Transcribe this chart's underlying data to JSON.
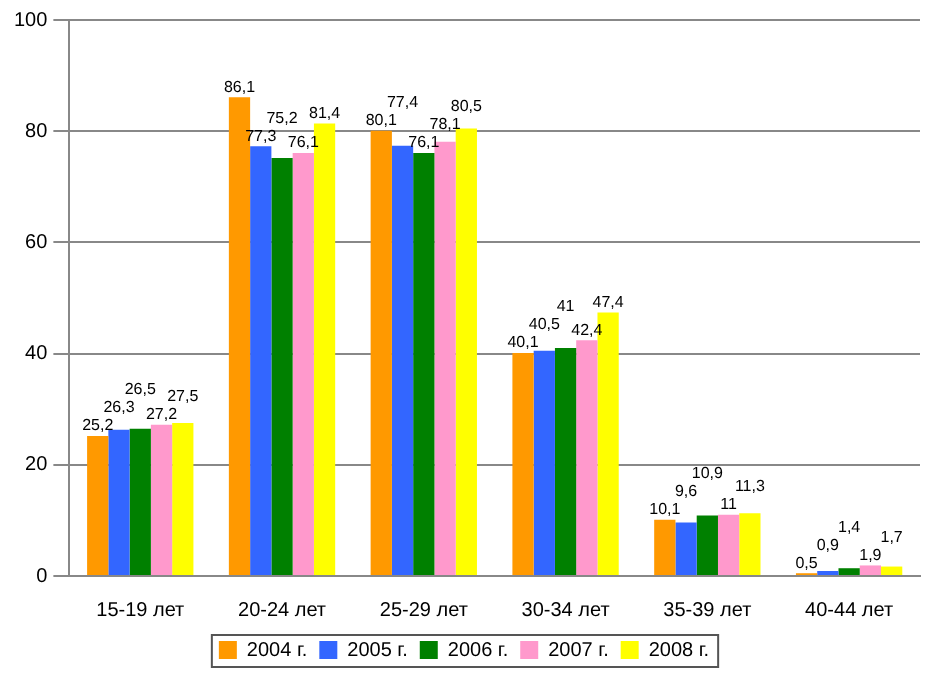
{
  "chart_data": {
    "type": "bar",
    "categories": [
      "15-19 лет",
      "20-24 лет",
      "25-29 лет",
      "30-34 лет",
      "35-39 лет",
      "40-44 лет"
    ],
    "series": [
      {
        "name": "2004 г.",
        "color": "#ff9900",
        "values": [
          25.2,
          86.1,
          80.1,
          40.1,
          10.1,
          0.5
        ],
        "value_labels": [
          "25,2",
          "86,1",
          "80,1",
          "40,1",
          "10,1",
          "0,5"
        ]
      },
      {
        "name": "2005 г.",
        "color": "#3366ff",
        "values": [
          26.3,
          77.3,
          77.4,
          40.5,
          9.6,
          0.9
        ],
        "value_labels": [
          "26,3",
          "77,3",
          "77,4",
          "40,5",
          "9,6",
          "0,9"
        ]
      },
      {
        "name": "2006 г.",
        "color": "#008000",
        "values": [
          26.5,
          75.2,
          76.1,
          41,
          10.9,
          1.4
        ],
        "value_labels": [
          "26,5",
          "75,2",
          "76,1",
          "41",
          "10,9",
          "1,4"
        ]
      },
      {
        "name": "2007 г.",
        "color": "#ff99cc",
        "values": [
          27.2,
          76.1,
          78.1,
          42.4,
          11,
          1.9
        ],
        "value_labels": [
          "27,2",
          "76,1",
          "78,1",
          "42,4",
          "11",
          "1,9"
        ]
      },
      {
        "name": "2008 г.",
        "color": "#ffff00",
        "values": [
          27.5,
          81.4,
          80.5,
          47.4,
          11.3,
          1.7
        ],
        "value_labels": [
          "27,5",
          "81,4",
          "80,5",
          "47,4",
          "11,3",
          "1,7"
        ]
      }
    ],
    "ylim": [
      0,
      100
    ],
    "yticks": [
      0,
      20,
      40,
      60,
      80,
      100
    ],
    "grid": "y",
    "legend": "bottom"
  }
}
